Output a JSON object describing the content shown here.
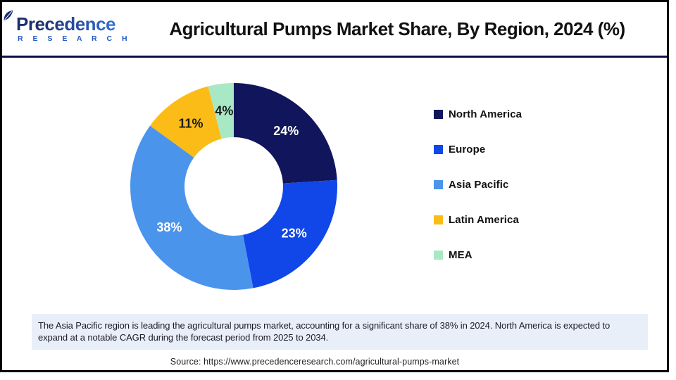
{
  "header": {
    "logo": {
      "brand": "Precedence",
      "sub": "R E S E A R C H"
    },
    "title": "Agricultural Pumps Market Share, By Region, 2024 (%)"
  },
  "chart_data": {
    "type": "pie",
    "subtype": "donut",
    "title": "Agricultural Pumps Market Share, By Region, 2024 (%)",
    "categories": [
      "North America",
      "Europe",
      "Asia Pacific",
      "Latin America",
      "MEA"
    ],
    "values": [
      24,
      23,
      38,
      11,
      4
    ],
    "data_labels": [
      "24%",
      "23%",
      "38%",
      "11%",
      "4%"
    ],
    "colors": [
      "#11155C",
      "#1147E8",
      "#4B94EC",
      "#FBBC17",
      "#A9E8C4"
    ],
    "label_colors": [
      "#ffffff",
      "#ffffff",
      "#ffffff",
      "#1a1a1a",
      "#1a1a1a"
    ],
    "start_angle": 0,
    "direction": "clockwise",
    "inner_radius_ratio": 0.476,
    "legend_position": "right"
  },
  "note": {
    "text": "The Asia Pacific region is leading the agricultural pumps market, accounting for a significant share of 38% in 2024. North America is expected to expand at a notable CAGR during the forecast period from 2025 to 2034."
  },
  "source": {
    "text": "Source: https://www.precedenceresearch.com/agricultural-pumps-market"
  }
}
